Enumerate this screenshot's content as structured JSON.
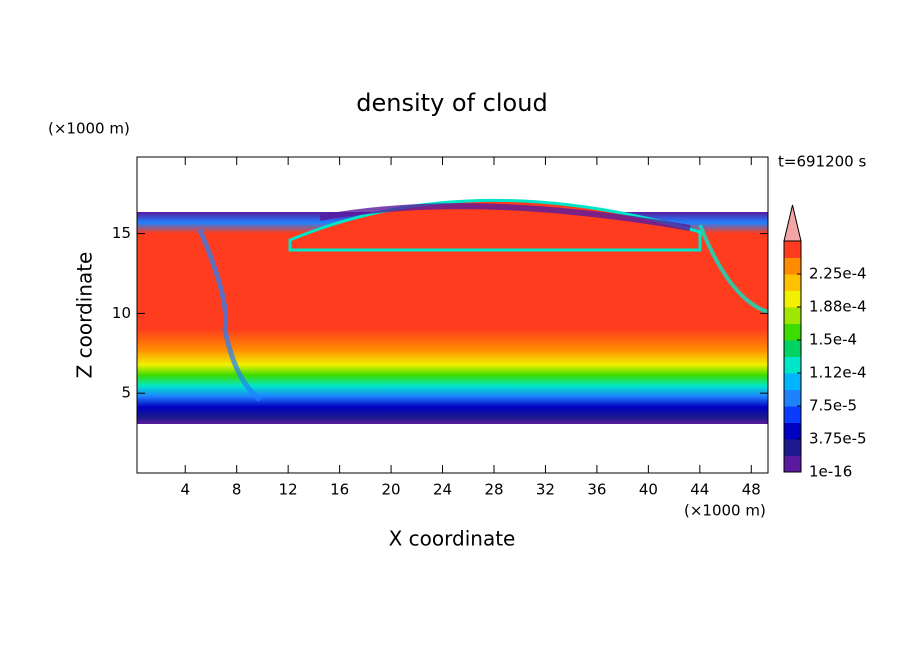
{
  "chart_data": {
    "type": "contour",
    "title": "density of cloud",
    "x_label": "X coordinate",
    "y_label": "Z coordinate",
    "x_unit": "(×1000 m)",
    "y_unit": "(×1000 m)",
    "annotation": "t=691200 s",
    "xlim": [
      0.25,
      49.3
    ],
    "ylim": [
      0,
      19.8
    ],
    "xticks": [
      4,
      8,
      12,
      16,
      20,
      24,
      28,
      32,
      36,
      40,
      44,
      48
    ],
    "yticks": [
      5,
      10,
      15
    ],
    "colorbar": {
      "lim": [
        0,
        0.0002625
      ],
      "ticks": [
        {
          "value": 1e-16,
          "label": "1e-16"
        },
        {
          "value": 3.75e-05,
          "label": "3.75e-5"
        },
        {
          "value": 7.5e-05,
          "label": "7.5e-5"
        },
        {
          "value": 0.0001125,
          "label": "1.12e-4"
        },
        {
          "value": 0.00015,
          "label": "1.5e-4"
        },
        {
          "value": 0.0001875,
          "label": "1.88e-4"
        },
        {
          "value": 0.000225,
          "label": "2.25e-4"
        }
      ],
      "colors": [
        "#5a1a9e",
        "#1c1a8c",
        "#0000c0",
        "#0a3cff",
        "#1e82ff",
        "#00b4ff",
        "#00e6c8",
        "#00d264",
        "#3cdc00",
        "#a0e600",
        "#f0f000",
        "#ffc000",
        "#ff8c00",
        "#ff3c1e"
      ],
      "extend_color": "#f4a6a6"
    }
  }
}
